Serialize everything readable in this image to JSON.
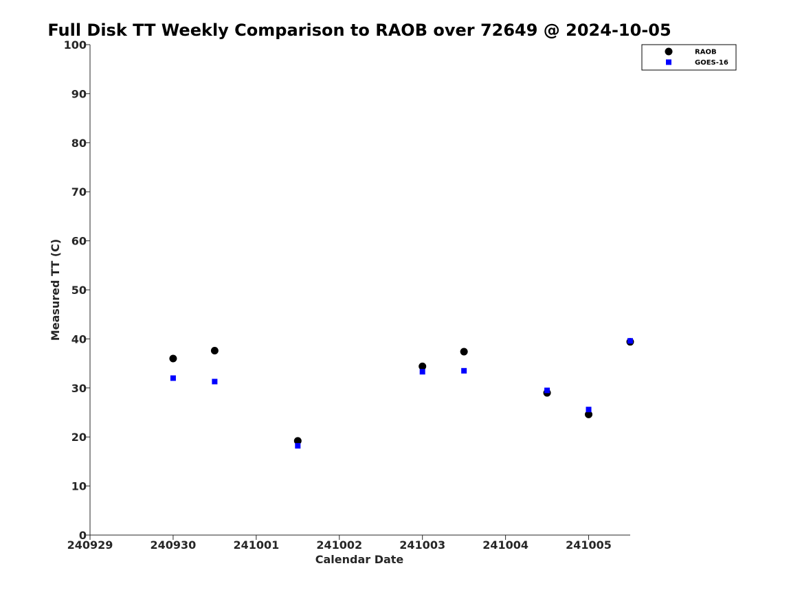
{
  "chart_data": {
    "type": "scatter",
    "title": "Full Disk TT Weekly Comparison to RAOB over 72649 @ 2024-10-05",
    "xlabel": "Calendar Date",
    "ylabel": "Measured TT (C)",
    "x_ticks": [
      "240929",
      "240930",
      "241001",
      "241002",
      "241003",
      "241004",
      "241005"
    ],
    "x_tick_values": [
      0,
      1,
      2,
      3,
      4,
      5,
      6
    ],
    "xlim": [
      0,
      6.5
    ],
    "ylim": [
      0,
      100
    ],
    "y_ticks": [
      0,
      10,
      20,
      30,
      40,
      50,
      60,
      70,
      80,
      90,
      100
    ],
    "grid": false,
    "legend_position": "top-right",
    "series": [
      {
        "name": "RAOB",
        "marker": "circle",
        "color": "#000000",
        "x": [
          1.0,
          1.5,
          2.5,
          4.0,
          4.5,
          5.5,
          6.0,
          6.5
        ],
        "y": [
          36.0,
          37.6,
          19.2,
          34.4,
          37.4,
          29.0,
          24.6,
          39.4
        ]
      },
      {
        "name": "GOES-16",
        "marker": "square",
        "color": "#0000ff",
        "x": [
          1.0,
          1.5,
          2.5,
          4.0,
          4.5,
          5.5,
          6.0,
          6.5
        ],
        "y": [
          32.0,
          31.3,
          18.2,
          33.3,
          33.5,
          29.5,
          25.6,
          39.6
        ]
      }
    ]
  }
}
